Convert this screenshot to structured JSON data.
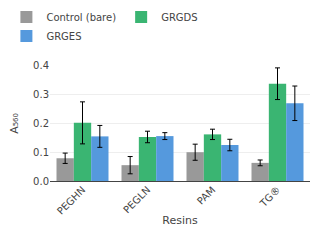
{
  "chart_data": {
    "type": "bar",
    "categories": [
      "PEGHN",
      "PEGLN",
      "PAM",
      "TG®"
    ],
    "series": [
      {
        "name": "Control (bare)",
        "color": "#999999",
        "values": [
          0.079,
          0.055,
          0.1,
          0.063
        ],
        "errors": [
          0.018,
          0.03,
          0.028,
          0.01
        ]
      },
      {
        "name": "GRGDS",
        "color": "#3ab572",
        "values": [
          0.202,
          0.153,
          0.162,
          0.338
        ],
        "errors": [
          0.073,
          0.02,
          0.018,
          0.055
        ]
      },
      {
        "name": "GRGES",
        "color": "#5599dd",
        "values": [
          0.155,
          0.156,
          0.125,
          0.27
        ],
        "errors": [
          0.038,
          0.012,
          0.02,
          0.06
        ]
      }
    ],
    "xlabel": "Resins",
    "ylabel": "A₅₆₀",
    "ylim": [
      0.0,
      0.4
    ],
    "yticks": [
      {
        "value": 0.0,
        "label": "0.0"
      },
      0.1,
      0.2,
      0.3,
      0.4
    ],
    "grid": true,
    "legend": "top"
  }
}
